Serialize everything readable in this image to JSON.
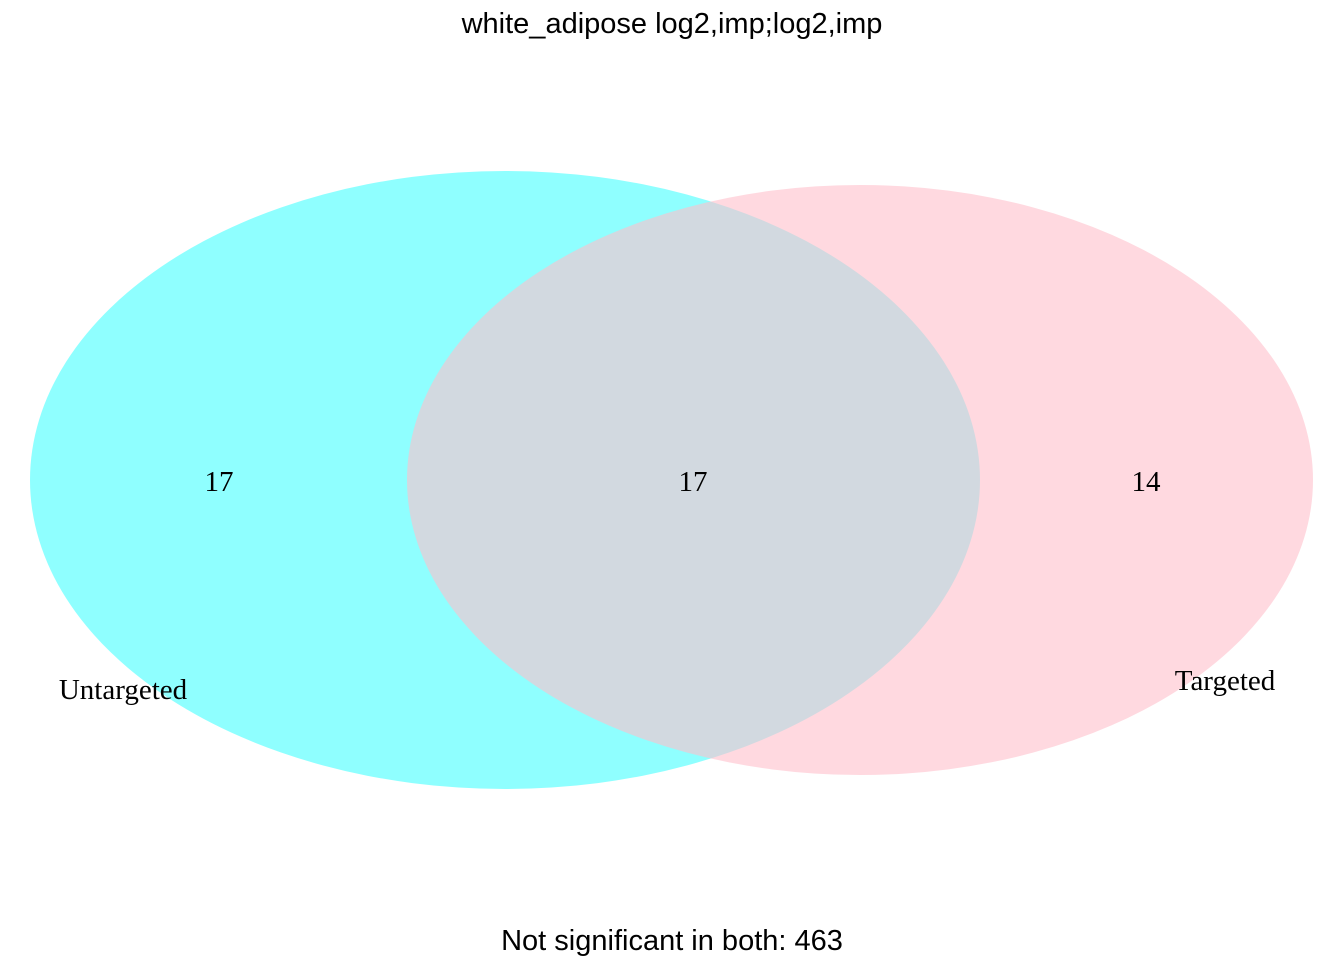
{
  "title": "white_adipose log2,imp;log2,imp",
  "sets": [
    {
      "name": "Untargeted",
      "only_count": "17",
      "color": "#00ffff",
      "opacity": 0.44
    },
    {
      "name": "Targeted",
      "only_count": "14",
      "color": "#ffc0cb",
      "opacity": 0.6
    }
  ],
  "intersection_count": "17",
  "footer": "Not significant in both: 463"
}
